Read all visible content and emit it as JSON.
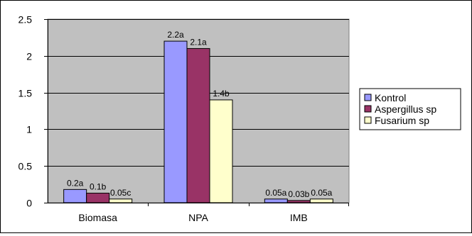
{
  "chart_data": {
    "type": "bar",
    "categories": [
      "Biomasa",
      "NPA",
      "IMB"
    ],
    "series": [
      {
        "name": "Kontrol",
        "values": [
          0.18,
          2.2,
          0.05
        ],
        "labels": [
          "0.2a",
          "2.2a",
          "0.05a"
        ],
        "color": "#9999FF"
      },
      {
        "name": "Aspergillus sp",
        "values": [
          0.13,
          2.1,
          0.03
        ],
        "labels": [
          "0.1b",
          "2.1a",
          "0.03b"
        ],
        "color": "#993366"
      },
      {
        "name": "Fusarium sp",
        "values": [
          0.05,
          1.4,
          0.05
        ],
        "labels": [
          "0.05c",
          "1.4b",
          "0.05a"
        ],
        "color": "#FFFFCC"
      }
    ],
    "ylim": [
      0,
      2.5
    ],
    "yticks": [
      0,
      0.5,
      1,
      1.5,
      2,
      2.5
    ],
    "ytick_labels": [
      "0",
      "0.5",
      "1",
      "1.5",
      "2",
      "2.5"
    ],
    "grid": true,
    "legend_position": "right",
    "plot_background": "#C0C0C0",
    "title": "",
    "xlabel": "",
    "ylabel": ""
  }
}
